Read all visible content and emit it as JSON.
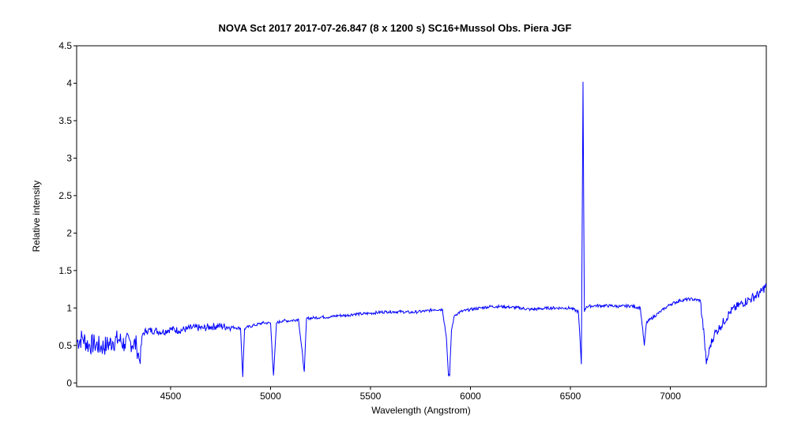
{
  "chart_data": {
    "type": "line",
    "title": "NOVA Sct 2017  2017-07-26.847 (8 x 1200 s)  SC16+Mussol  Obs. Piera  JGF",
    "xlabel": "Wavelength (Angstrom)",
    "ylabel": "Relative intensity",
    "xlim": [
      4030,
      7480
    ],
    "ylim": [
      -0.05,
      4.5
    ],
    "x_ticks": [
      4500,
      5000,
      5500,
      6000,
      6500,
      7000
    ],
    "x_tick_labels": [
      "4500",
      "5000",
      "5500",
      "6000",
      "6500",
      "7000"
    ],
    "y_ticks": [
      0,
      0.5,
      1,
      1.5,
      2,
      2.5,
      3,
      3.5,
      4,
      4.5
    ],
    "y_tick_labels": [
      "0",
      "0.5",
      "1",
      "1.5",
      "2",
      "2.5",
      "3",
      "3.5",
      "4",
      "4.5"
    ],
    "grid": false,
    "legend": "none",
    "line_color": "#0000ff",
    "series": [
      {
        "x": [
          4030,
          4060,
          4090,
          4120,
          4150,
          4180,
          4210,
          4240,
          4270,
          4300,
          4330,
          4345,
          4360,
          4380,
          4420,
          4460,
          4500,
          4540,
          4580,
          4620,
          4660,
          4700,
          4740,
          4780,
          4820,
          4850,
          4861,
          4870,
          4880,
          4920,
          4960,
          5000,
          5015,
          5030,
          5060,
          5100,
          5140,
          5169,
          5180,
          5220,
          5260,
          5300,
          5340,
          5380,
          5420,
          5460,
          5500,
          5540,
          5577,
          5590,
          5620,
          5660,
          5700,
          5740,
          5780,
          5820,
          5860,
          5880,
          5890,
          5896,
          5905,
          5920,
          5950,
          6000,
          6050,
          6100,
          6150,
          6200,
          6250,
          6300,
          6350,
          6400,
          6450,
          6500,
          6540,
          6555,
          6563,
          6570,
          6580,
          6620,
          6660,
          6700,
          6750,
          6800,
          6850,
          6870,
          6880,
          6900,
          6950,
          7000,
          7050,
          7100,
          7150,
          7170,
          7180,
          7200,
          7220,
          7250,
          7300,
          7350,
          7400,
          7450,
          7480
        ],
        "y": [
          0.55,
          0.6,
          0.5,
          0.52,
          0.48,
          0.5,
          0.55,
          0.58,
          0.52,
          0.55,
          0.5,
          0.3,
          0.65,
          0.7,
          0.7,
          0.68,
          0.72,
          0.7,
          0.72,
          0.74,
          0.73,
          0.75,
          0.76,
          0.75,
          0.74,
          0.73,
          0.08,
          0.72,
          0.74,
          0.77,
          0.8,
          0.8,
          0.1,
          0.8,
          0.83,
          0.83,
          0.85,
          0.15,
          0.86,
          0.87,
          0.88,
          0.88,
          0.9,
          0.9,
          0.92,
          0.92,
          0.93,
          0.94,
          0.95,
          0.95,
          0.95,
          0.95,
          0.94,
          0.95,
          0.96,
          0.98,
          0.98,
          0.6,
          0.1,
          0.1,
          0.7,
          0.9,
          0.95,
          0.98,
          1.0,
          1.02,
          1.02,
          1.01,
          1.0,
          0.98,
          0.99,
          1.0,
          1.0,
          1.0,
          0.95,
          0.25,
          4.02,
          0.95,
          1.02,
          1.03,
          1.03,
          1.03,
          1.02,
          1.03,
          1.0,
          0.5,
          0.8,
          0.85,
          0.95,
          1.05,
          1.1,
          1.12,
          1.1,
          0.6,
          0.25,
          0.5,
          0.65,
          0.75,
          0.95,
          1.05,
          1.12,
          1.2,
          1.3
        ]
      }
    ]
  }
}
